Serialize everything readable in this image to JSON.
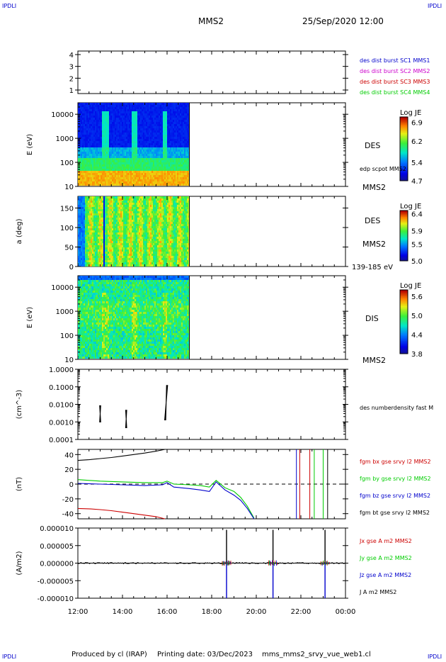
{
  "header": {
    "corner_tl": "IPDLI",
    "corner_tr": "IPDLI",
    "corner_bl": "IPDLI",
    "corner_br": "IPDLI",
    "spacecraft": "MMS2",
    "datetime": "25/Sep/2020 12:00"
  },
  "footer": {
    "producer": "Produced by cl (IRAP)",
    "print_date": "Printing date: 03/Dec/2023",
    "source": "mms_mms2_srvy_vue_web1.cl"
  },
  "colors": {
    "sc1": "#0000cc",
    "sc2": "#cc00cc",
    "sc3": "#cc0000",
    "sc4": "#00cc00",
    "bx": "#cc0000",
    "by": "#00cc00",
    "bz": "#0000cc",
    "bt": "#000000"
  },
  "chart_data": [
    {
      "type": "table",
      "panel": "burst-availability",
      "yticks": [
        "1",
        "2",
        "3",
        "4"
      ],
      "ylim": [
        0.7,
        4.3
      ],
      "legend": [
        "des dist burst SC1 MMS1",
        "des dist burst SC2 MMS2",
        "des dist burst SC3 MMS3",
        "des dist burst SC4 MMS4"
      ],
      "legend_colors": [
        "#0000cc",
        "#cc00cc",
        "#cc0000",
        "#00cc00"
      ]
    },
    {
      "type": "heatmap",
      "panel": "des-energy-spectrogram",
      "ylabel": "E (eV)",
      "yscale": "log",
      "ylim": [
        10,
        30000
      ],
      "yticks": [
        "10",
        "100",
        "1000",
        "10000"
      ],
      "data_end": "17:00",
      "side_label": "DES",
      "side_label2": "edp scpot MMS2",
      "side_label3": "MMS2",
      "colorbar": {
        "title": "Log JE",
        "min": 4.7,
        "max": 7.1,
        "ticks": [
          "6.9",
          "6.2",
          "5.4",
          "4.7"
        ]
      }
    },
    {
      "type": "heatmap",
      "panel": "des-pitch-angle",
      "ylabel": "a (deg)",
      "ylim": [
        0,
        180
      ],
      "yticks": [
        "0",
        "50",
        "100",
        "150"
      ],
      "data_end": "17:00",
      "side_label": "DES",
      "side_label2": "MMS2",
      "side_label3": "139-185 eV",
      "colorbar": {
        "title": "Log JE",
        "min": 5.0,
        "max": 6.5,
        "ticks": [
          "6.4",
          "5.9",
          "5.5",
          "5.0"
        ]
      }
    },
    {
      "type": "heatmap",
      "panel": "dis-energy-spectrogram",
      "ylabel": "E (eV)",
      "yscale": "log",
      "ylim": [
        10,
        30000
      ],
      "yticks": [
        "10",
        "100",
        "1000",
        "10000"
      ],
      "data_end": "17:00",
      "side_label": "DIS",
      "side_label2": "MMS2",
      "colorbar": {
        "title": "Log JE",
        "min": 3.8,
        "max": 5.8,
        "ticks": [
          "5.6",
          "5.0",
          "4.4",
          "3.8"
        ]
      }
    },
    {
      "type": "line",
      "panel": "density",
      "ylabel": "(cm^-3)",
      "yscale": "log",
      "ylim": [
        0.0001,
        1.0
      ],
      "yticks": [
        "0.0001",
        "0.0010",
        "0.0100",
        "0.1000",
        "1.0000"
      ],
      "legend": [
        "des numberdensity fast M"
      ],
      "segments": [
        {
          "t0": "13:00",
          "t1": "13:00",
          "ymin": 0.001,
          "ymax": 0.0083
        },
        {
          "t0": "14:10",
          "t1": "14:10",
          "ymin": 0.00047,
          "ymax": 0.0046
        },
        {
          "t0": "15:55",
          "t1": "16:00",
          "ymin": 0.0013,
          "ymax": 0.12
        }
      ]
    },
    {
      "type": "line",
      "panel": "magnetic-field",
      "ylabel": "(nT)",
      "ylim": [
        -47,
        47
      ],
      "yticks": [
        "-40",
        "-20",
        "0",
        "20",
        "40"
      ],
      "legend": [
        "fgm bx gse srvy l2 MMS2",
        "fgm by gse srvy l2 MMS2",
        "fgm bz gse srvy l2 MMS2",
        "fgm bt gse srvy l2 MMS2"
      ],
      "series": [
        {
          "name": "fgm bx gse srvy l2 MMS2",
          "t": [
            12.0,
            12.5,
            13.0,
            13.5,
            14.0,
            14.5,
            15.0,
            15.5,
            15.9
          ],
          "values": [
            -33,
            -33.5,
            -34.5,
            -36,
            -38,
            -40,
            -42,
            -44,
            -47
          ]
        },
        {
          "name": "fgm by gse srvy l2 MMS2",
          "t": [
            12.0,
            13.0,
            14.0,
            15.0,
            15.8,
            16.0,
            16.3,
            17.0,
            17.5,
            17.9,
            18.2,
            18.6,
            19.0,
            19.3,
            19.6,
            19.9
          ],
          "values": [
            6,
            4,
            3,
            2,
            2,
            4,
            0,
            -1,
            -2,
            -4,
            5,
            -5,
            -10,
            -18,
            -30,
            -46
          ]
        },
        {
          "name": "fgm bz gse srvy l2 MMS2",
          "t": [
            12.0,
            13.0,
            14.0,
            15.0,
            15.8,
            16.0,
            16.3,
            17.0,
            17.5,
            17.9,
            18.2,
            18.6,
            19.0,
            19.3,
            19.6,
            19.9
          ],
          "values": [
            1,
            0,
            -1,
            -2,
            -1,
            2,
            -4,
            -6,
            -8,
            -10,
            3,
            -8,
            -15,
            -22,
            -33,
            -47
          ]
        },
        {
          "name": "fgm bt gse srvy l2 MMS2",
          "t": [
            12.0,
            12.5,
            13.0,
            13.5,
            14.0,
            14.5,
            15.0,
            15.5,
            15.9
          ],
          "values": [
            32,
            33,
            34.5,
            36,
            38,
            40,
            42,
            44.5,
            47
          ]
        }
      ],
      "dashed_zero": true
    },
    {
      "type": "line",
      "panel": "current-density",
      "ylabel": "(A/m2)",
      "ylim": [
        -1e-05,
        1e-05
      ],
      "yticks": [
        "-0.000010",
        "-0.000005",
        "0.000000",
        "0.000005",
        "0.000010"
      ],
      "legend": [
        "Jx gse A m2 MMS2",
        "Jy gse A m2 MMS2",
        "Jz gse A m2 MMS2",
        "J A m2 MMS2"
      ],
      "spikes": [
        {
          "t": "18:40",
          "max": 9.5e-06,
          "min": -1e-05
        },
        {
          "t": "20:45",
          "max": 9.5e-06,
          "min": -1e-05
        },
        {
          "t": "23:05",
          "max": 9.5e-06,
          "min": -1e-05
        }
      ]
    }
  ],
  "xaxis": {
    "ticks": [
      "12:00",
      "14:00",
      "16:00",
      "18:00",
      "20:00",
      "22:00",
      "00:00"
    ]
  }
}
